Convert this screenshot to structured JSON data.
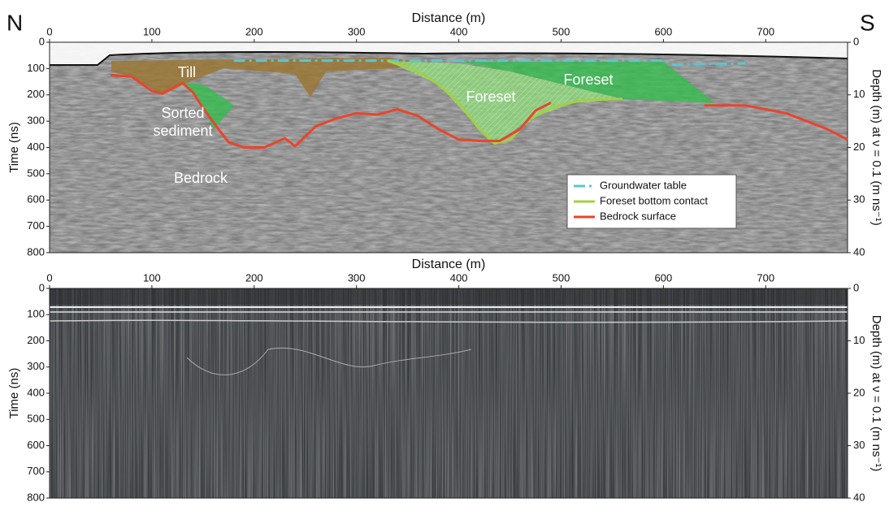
{
  "chart_data": [
    {
      "type": "line",
      "x_label": "Distance (m)",
      "y_label": "Time (ns)",
      "y2_label": "Depth (m) at ν = 0.1 (m ns⁻¹)",
      "xlim": [
        0,
        780
      ],
      "xticks": [
        0,
        100,
        200,
        300,
        400,
        500,
        600,
        700
      ],
      "ylim": [
        800,
        0
      ],
      "yticks": [
        0,
        100,
        200,
        300,
        400,
        500,
        600,
        700,
        800
      ],
      "y2lim": [
        40,
        0
      ],
      "y2ticks": [
        0,
        10,
        20,
        30,
        40
      ],
      "annotations": [
        "N",
        "S",
        "Till",
        "Sorted sediment",
        "Bedrock",
        "Foreset",
        "Foreset"
      ],
      "legend": "right",
      "series": [
        {
          "name": "Groundwater table",
          "color": "#5cc6cf",
          "line_style": "dashdot",
          "x": [
            180,
            600,
            610,
            680
          ],
          "values": [
            70,
            70,
            85,
            80
          ]
        },
        {
          "name": "Foreset bottom contact",
          "color": "#a2d045",
          "line_style": "solid",
          "x": [
            330,
            360,
            380,
            400,
            420,
            435,
            450,
            470,
            490,
            510,
            520,
            560
          ],
          "values": [
            70,
            110,
            160,
            230,
            330,
            385,
            370,
            290,
            250,
            230,
            220,
            215
          ]
        },
        {
          "name": "Bedrock surface",
          "color": "#e8452c",
          "line_style": "solid",
          "x": [
            60,
            80,
            100,
            110,
            130,
            140,
            150,
            165,
            175,
            190,
            210,
            230,
            240,
            260,
            280,
            300,
            320,
            340,
            360,
            380,
            400,
            420,
            440,
            460,
            475,
            490,
            560,
            640,
            680,
            720,
            760,
            780
          ],
          "values": [
            125,
            130,
            185,
            195,
            155,
            190,
            250,
            330,
            380,
            400,
            400,
            365,
            395,
            320,
            290,
            270,
            275,
            255,
            280,
            330,
            370,
            375,
            375,
            330,
            260,
            230,
            null,
            240,
            240,
            270,
            330,
            370
          ]
        }
      ]
    },
    {
      "type": "radargram",
      "x_label": "Distance (m)",
      "y_label": "Time (ns)",
      "y2_label": "Depth (m) at ν = 0.1 (m ns⁻¹)",
      "xlim": [
        0,
        780
      ],
      "xticks": [
        0,
        100,
        200,
        300,
        400,
        500,
        600,
        700
      ],
      "ylim": [
        800,
        0
      ],
      "yticks": [
        0,
        100,
        200,
        300,
        400,
        500,
        600,
        700,
        800
      ],
      "y2lim": [
        40,
        0
      ],
      "y2ticks": [
        0,
        10,
        20,
        30,
        40
      ]
    }
  ]
}
